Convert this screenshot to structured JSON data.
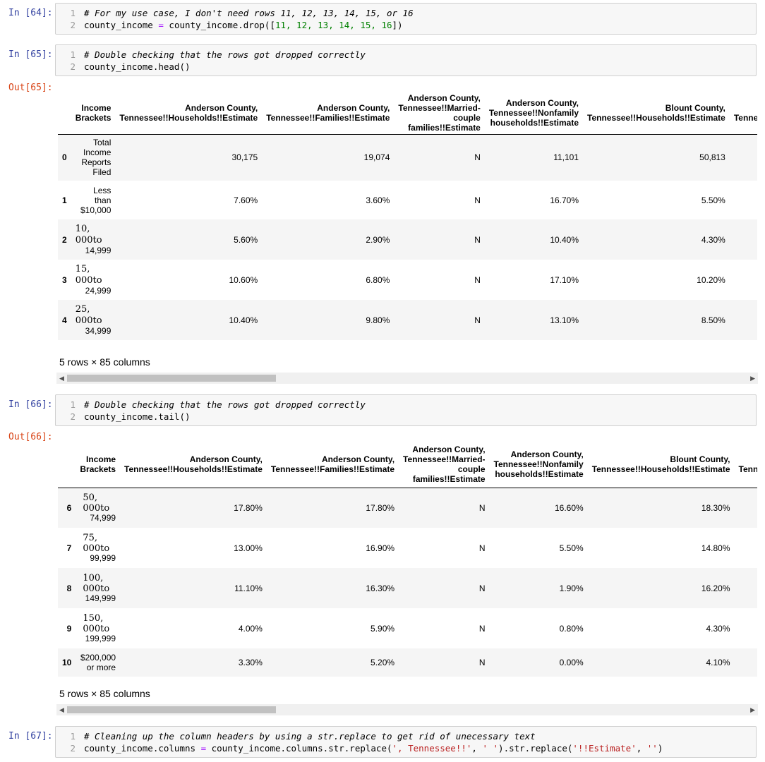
{
  "cells": [
    {
      "prompt": "In [64]:",
      "lines": [
        {
          "n": "1",
          "comment": "# For my use case, I don't need rows 11, 12, 13, 14, 15, or 16"
        },
        {
          "n": "2",
          "code_a": "county_income ",
          "op": "=",
          "code_b": " county_income.drop([",
          "nums": "11, 12, 13, 14, 15, 16",
          "code_c": "])"
        }
      ]
    },
    {
      "prompt": "In [65]:",
      "lines": [
        {
          "n": "1",
          "comment": "# Double checking that the rows got dropped correctly"
        },
        {
          "n": "2",
          "code": "county_income.head()"
        }
      ]
    },
    {
      "prompt": "In [66]:",
      "lines": [
        {
          "n": "1",
          "comment": "# Double checking that the rows got dropped correctly"
        },
        {
          "n": "2",
          "code": "county_income.tail()"
        }
      ]
    },
    {
      "prompt": "In [67]:",
      "lines": [
        {
          "n": "1",
          "comment": "# Cleaning up the column headers by using a str.replace to get rid of unecessary text"
        },
        {
          "n": "2",
          "code_a": "county_income.columns ",
          "op": "=",
          "code_b": " county_income.columns.str.replace(",
          "s1": "', Tennessee!!'",
          "code_c": ", ",
          "s2": "' '",
          "code_d": ").str.replace(",
          "s3": "'!!Estimate'",
          "code_e": ", ",
          "s4": "''",
          "code_f": ")"
        }
      ]
    }
  ],
  "outputs": {
    "out65_prompt": "Out[65]:",
    "out66_prompt": "Out[66]:",
    "headers": {
      "h0": "Income Brackets",
      "h1": "Anderson County, Tennessee!!Households!!Estimate",
      "h2": "Anderson County, Tennessee!!Families!!Estimate",
      "h3": "Anderson County, Tennessee!!Married-couple families!!Estimate",
      "h4": "Anderson County, Tennessee!!Nonfamily households!!Estimate",
      "h5": "Blount County, Tennessee!!Households!!Estimate",
      "h6": "Tenne"
    },
    "head_rows": [
      {
        "idx": "0",
        "bracket": "Total Income Reports Filed",
        "v1": "30,175",
        "v2": "19,074",
        "v3": "N",
        "v4": "11,101",
        "v5": "50,813"
      },
      {
        "idx": "1",
        "bracket": "Less than $10,000",
        "v1": "7.60%",
        "v2": "3.60%",
        "v3": "N",
        "v4": "16.70%",
        "v5": "5.50%"
      },
      {
        "idx": "2",
        "b_top": "10,",
        "b_mid": "000to",
        "b_bot": "14,999",
        "v1": "5.60%",
        "v2": "2.90%",
        "v3": "N",
        "v4": "10.40%",
        "v5": "4.30%"
      },
      {
        "idx": "3",
        "b_top": "15,",
        "b_mid": "000to",
        "b_bot": "24,999",
        "v1": "10.60%",
        "v2": "6.80%",
        "v3": "N",
        "v4": "17.10%",
        "v5": "10.20%"
      },
      {
        "idx": "4",
        "b_top": "25,",
        "b_mid": "000to",
        "b_bot": "34,999",
        "v1": "10.40%",
        "v2": "9.80%",
        "v3": "N",
        "v4": "13.10%",
        "v5": "8.50%"
      }
    ],
    "tail_rows": [
      {
        "idx": "6",
        "b_top": "50,",
        "b_mid": "000to",
        "b_bot": "74,999",
        "v1": "17.80%",
        "v2": "17.80%",
        "v3": "N",
        "v4": "16.60%",
        "v5": "18.30%"
      },
      {
        "idx": "7",
        "b_top": "75,",
        "b_mid": "000to",
        "b_bot": "99,999",
        "v1": "13.00%",
        "v2": "16.90%",
        "v3": "N",
        "v4": "5.50%",
        "v5": "14.80%"
      },
      {
        "idx": "8",
        "b_top": "100,",
        "b_mid": "000to",
        "b_bot": "149,999",
        "v1": "11.10%",
        "v2": "16.30%",
        "v3": "N",
        "v4": "1.90%",
        "v5": "16.20%"
      },
      {
        "idx": "9",
        "b_top": "150,",
        "b_mid": "000to",
        "b_bot": "199,999",
        "v1": "4.00%",
        "v2": "5.90%",
        "v3": "N",
        "v4": "0.80%",
        "v5": "4.30%"
      },
      {
        "idx": "10",
        "bracket": "$200,000 or more",
        "v1": "3.30%",
        "v2": "5.20%",
        "v3": "N",
        "v4": "0.00%",
        "v5": "4.10%"
      }
    ],
    "tail_header_last": "Tenn",
    "shape_text": "5 rows × 85 columns",
    "scroll_left": "◀",
    "scroll_right": "▶"
  }
}
